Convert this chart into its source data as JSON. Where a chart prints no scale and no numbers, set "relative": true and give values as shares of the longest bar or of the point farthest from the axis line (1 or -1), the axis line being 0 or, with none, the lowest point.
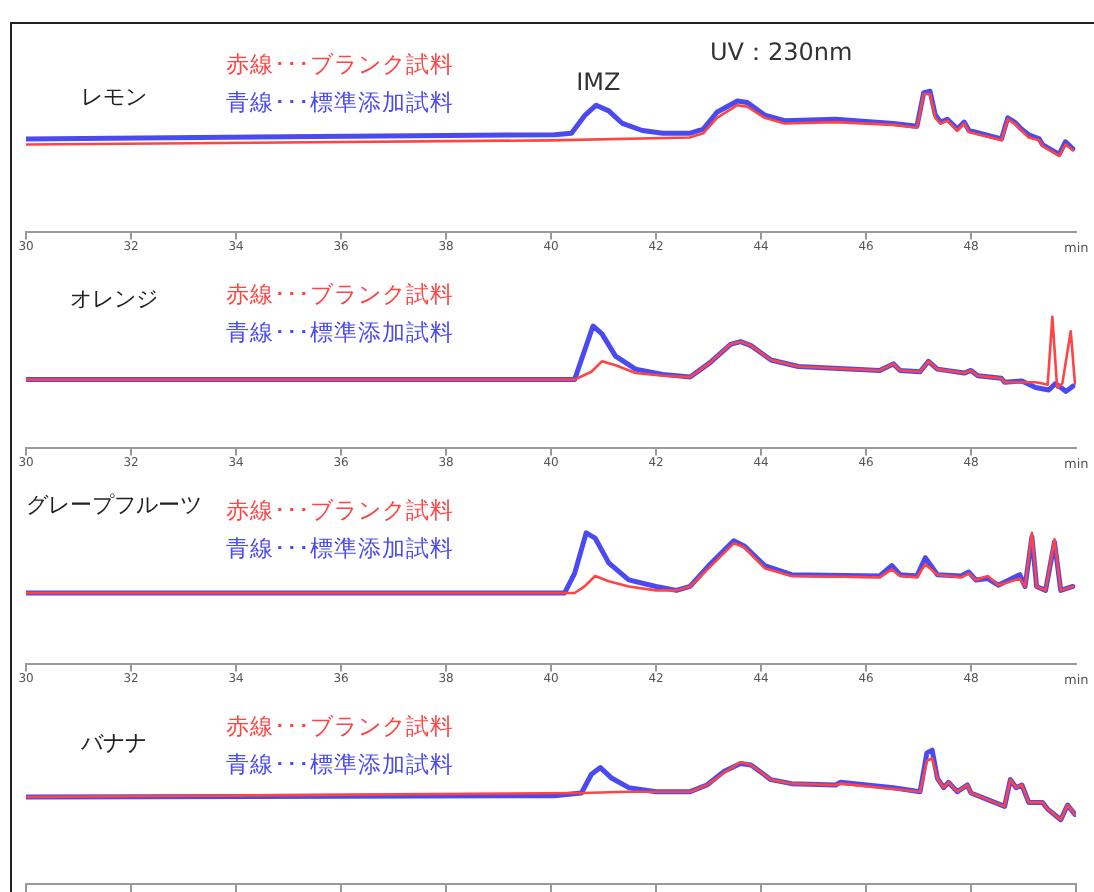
{
  "chart_data": [
    {
      "type": "line",
      "title": "レモン",
      "xlabel": "min",
      "annotations": [
        {
          "text": "IMZ",
          "x": 40.9,
          "y": 0.9
        },
        "UV：230nm"
      ],
      "relative": true,
      "xlim": [
        30,
        50
      ],
      "xticks": [
        30,
        32,
        34,
        36,
        38,
        40,
        42,
        44,
        46,
        48
      ],
      "legend": "top left",
      "series": [
        {
          "name": "赤線･･･ブランク試料",
          "color": "#ff4444",
          "x": [
            30.0,
            40.0,
            42.64,
            42.9,
            43.16,
            43.55,
            43.74,
            44.07,
            44.45,
            45.42,
            46.52,
            46.97,
            47.1,
            47.22,
            47.32,
            47.42,
            47.55,
            47.74,
            47.87,
            47.96,
            48.58,
            48.7,
            48.83,
            48.96,
            49.1,
            49.3,
            49.36,
            49.68,
            49.8,
            49.94
          ],
          "values": [
            0.62,
            0.65,
            0.67,
            0.7,
            0.81,
            0.9,
            0.89,
            0.81,
            0.77,
            0.78,
            0.76,
            0.74,
            0.98,
            0.98,
            0.81,
            0.77,
            0.79,
            0.72,
            0.77,
            0.71,
            0.65,
            0.8,
            0.77,
            0.72,
            0.67,
            0.65,
            0.61,
            0.54,
            0.62,
            0.58
          ]
        },
        {
          "name": "青線･･･標準添加試料",
          "color": "#4a4af0",
          "x": [
            30.0,
            40.07,
            40.39,
            40.65,
            40.86,
            41.1,
            41.36,
            41.74,
            42.13,
            42.64,
            42.9,
            43.16,
            43.55,
            43.74,
            44.07,
            44.45,
            45.42,
            46.52,
            46.97,
            47.1,
            47.22,
            47.32,
            47.42,
            47.55,
            47.74,
            47.87,
            47.96,
            48.58,
            48.7,
            48.83,
            48.96,
            49.1,
            49.3,
            49.36,
            49.68,
            49.8,
            49.94
          ],
          "values": [
            0.66,
            0.69,
            0.7,
            0.83,
            0.9,
            0.86,
            0.77,
            0.72,
            0.7,
            0.7,
            0.73,
            0.85,
            0.93,
            0.92,
            0.83,
            0.79,
            0.8,
            0.77,
            0.75,
            0.99,
            1.0,
            0.83,
            0.78,
            0.8,
            0.73,
            0.78,
            0.72,
            0.66,
            0.81,
            0.78,
            0.73,
            0.69,
            0.66,
            0.62,
            0.55,
            0.64,
            0.59
          ]
        }
      ]
    },
    {
      "type": "line",
      "title": "オレンジ",
      "xlabel": "min",
      "relative": true,
      "xlim": [
        30,
        50
      ],
      "xticks": [
        30,
        32,
        34,
        36,
        38,
        40,
        42,
        44,
        46,
        48
      ],
      "legend": "top left",
      "series": [
        {
          "name": "赤線･･･ブランク試料",
          "color": "#ff4444",
          "x": [
            30.0,
            40.45,
            40.77,
            40.97,
            41.23,
            41.61,
            42.13,
            42.65,
            43.03,
            43.42,
            43.61,
            43.81,
            44.19,
            44.71,
            46.26,
            46.52,
            46.65,
            47.03,
            47.19,
            47.36,
            47.87,
            48.0,
            48.13,
            48.58,
            48.64,
            49.23,
            49.36,
            49.46,
            49.55,
            49.64,
            49.74,
            49.9,
            49.98
          ],
          "values": [
            0.52,
            0.52,
            0.58,
            0.66,
            0.63,
            0.57,
            0.55,
            0.54,
            0.65,
            0.79,
            0.81,
            0.78,
            0.67,
            0.62,
            0.59,
            0.64,
            0.59,
            0.58,
            0.66,
            0.6,
            0.57,
            0.59,
            0.55,
            0.53,
            0.5,
            0.5,
            0.49,
            0.48,
            1.0,
            0.46,
            0.49,
            0.89,
            0.49
          ]
        },
        {
          "name": "青線･･･標準添加試料",
          "color": "#4a4af0",
          "x": [
            30.0,
            40.45,
            40.62,
            40.8,
            40.97,
            41.23,
            41.61,
            42.13,
            42.65,
            43.03,
            43.42,
            43.61,
            43.81,
            44.19,
            44.71,
            46.26,
            46.52,
            46.65,
            47.03,
            47.19,
            47.36,
            47.87,
            48.0,
            48.13,
            48.58,
            48.64,
            48.97,
            49.23,
            49.48,
            49.61,
            49.81,
            49.94
          ],
          "values": [
            0.52,
            0.52,
            0.72,
            0.93,
            0.87,
            0.7,
            0.6,
            0.56,
            0.54,
            0.65,
            0.79,
            0.81,
            0.78,
            0.67,
            0.62,
            0.59,
            0.64,
            0.59,
            0.58,
            0.66,
            0.6,
            0.57,
            0.59,
            0.55,
            0.53,
            0.5,
            0.51,
            0.46,
            0.44,
            0.49,
            0.43,
            0.47
          ]
        }
      ]
    },
    {
      "type": "line",
      "title": "グレープフルーツ",
      "xlabel": "min",
      "relative": true,
      "xlim": [
        30,
        50
      ],
      "xticks": [
        30,
        32,
        34,
        36,
        38,
        40,
        42,
        44,
        46,
        48
      ],
      "legend": "top left",
      "series": [
        {
          "name": "赤線･･･ブランク試料",
          "color": "#ff4444",
          "x": [
            30.0,
            40.45,
            40.64,
            40.84,
            41.1,
            41.48,
            42.0,
            42.39,
            42.65,
            43.03,
            43.48,
            43.68,
            44.07,
            44.58,
            46.26,
            46.49,
            46.65,
            46.97,
            47.13,
            47.36,
            47.81,
            47.96,
            48.09,
            48.32,
            48.52,
            48.93,
            49.03,
            49.16,
            49.25,
            49.42,
            49.59,
            49.71,
            49.94
          ],
          "values": [
            0.54,
            0.54,
            0.59,
            0.67,
            0.63,
            0.59,
            0.56,
            0.56,
            0.59,
            0.74,
            0.92,
            0.89,
            0.73,
            0.67,
            0.66,
            0.72,
            0.67,
            0.66,
            0.76,
            0.68,
            0.66,
            0.69,
            0.64,
            0.67,
            0.6,
            0.65,
            0.59,
            1.0,
            0.59,
            0.56,
            0.95,
            0.56,
            0.59
          ]
        },
        {
          "name": "青線･･･標準添加試料",
          "color": "#4a4af0",
          "x": [
            30.0,
            40.26,
            40.45,
            40.67,
            40.84,
            41.1,
            41.48,
            42.0,
            42.39,
            42.65,
            43.03,
            43.48,
            43.68,
            44.07,
            44.58,
            46.26,
            46.49,
            46.65,
            46.97,
            47.13,
            47.36,
            47.81,
            47.96,
            48.09,
            48.32,
            48.52,
            48.93,
            49.03,
            49.16,
            49.25,
            49.42,
            49.59,
            49.71,
            49.94
          ],
          "values": [
            0.54,
            0.54,
            0.69,
            1.0,
            0.96,
            0.77,
            0.64,
            0.59,
            0.56,
            0.59,
            0.76,
            0.94,
            0.9,
            0.75,
            0.68,
            0.67,
            0.75,
            0.68,
            0.67,
            0.81,
            0.68,
            0.67,
            0.7,
            0.64,
            0.65,
            0.6,
            0.68,
            0.59,
            0.97,
            0.59,
            0.56,
            0.93,
            0.56,
            0.59
          ]
        }
      ]
    },
    {
      "type": "line",
      "title": "バナナ",
      "relative": true,
      "xlim": [
        30,
        50
      ],
      "xticks": [
        30,
        32,
        34,
        36,
        38,
        40,
        42,
        44,
        46,
        48,
        50
      ],
      "tick_labels": false,
      "legend": "top left",
      "series": [
        {
          "name": "赤線･･･ブランク試料",
          "color": "#ff4444",
          "x": [
            30.0,
            40.58,
            41.48,
            42.65,
            42.97,
            43.29,
            43.61,
            43.81,
            44.19,
            44.58,
            45.42,
            45.51,
            46.52,
            47.03,
            47.16,
            47.26,
            47.36,
            47.48,
            47.57,
            47.74,
            47.93,
            48.0,
            48.64,
            48.75,
            48.86,
            48.97,
            49.1,
            49.36,
            49.46,
            49.71,
            49.84,
            49.98
          ],
          "values": [
            0.65,
            0.68,
            0.69,
            0.69,
            0.74,
            0.83,
            0.91,
            0.89,
            0.78,
            0.75,
            0.74,
            0.75,
            0.71,
            0.69,
            0.92,
            0.94,
            0.79,
            0.72,
            0.76,
            0.69,
            0.74,
            0.68,
            0.58,
            0.78,
            0.72,
            0.74,
            0.61,
            0.61,
            0.56,
            0.48,
            0.59,
            0.52
          ]
        },
        {
          "name": "青線･･･標準添加試料",
          "color": "#4a4af0",
          "x": [
            30.0,
            40.06,
            40.58,
            40.77,
            40.94,
            41.16,
            41.48,
            42.0,
            42.65,
            42.97,
            43.29,
            43.61,
            43.81,
            44.19,
            44.58,
            45.42,
            45.51,
            46.52,
            47.03,
            47.16,
            47.26,
            47.36,
            47.48,
            47.57,
            47.74,
            47.93,
            48.0,
            48.64,
            48.75,
            48.86,
            48.97,
            49.1,
            49.36,
            49.46,
            49.71,
            49.84,
            49.98
          ],
          "values": [
            0.65,
            0.66,
            0.68,
            0.82,
            0.87,
            0.79,
            0.72,
            0.69,
            0.69,
            0.74,
            0.84,
            0.9,
            0.89,
            0.78,
            0.75,
            0.74,
            0.76,
            0.72,
            0.69,
            0.98,
            1.0,
            0.79,
            0.72,
            0.76,
            0.69,
            0.74,
            0.68,
            0.58,
            0.78,
            0.72,
            0.74,
            0.61,
            0.61,
            0.56,
            0.48,
            0.59,
            0.52
          ]
        }
      ]
    }
  ]
}
